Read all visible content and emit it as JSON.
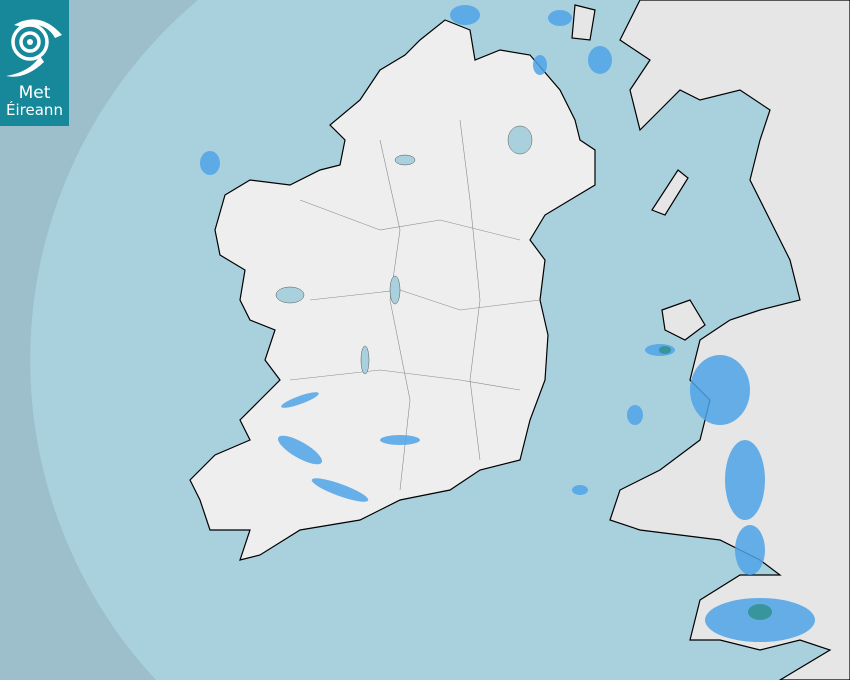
{
  "logo": {
    "line1": "Met",
    "line2": "Éireann",
    "icon": "swirl-logo-icon"
  },
  "colors": {
    "sea_outside_range": "#9cbfcb",
    "sea_in_range": "#a9d1dd",
    "land": "#f0f0f0",
    "rain_light": "#4fa3e8",
    "rain_moderate": "#2e8f8a",
    "logo_bg": "#16889a"
  }
}
